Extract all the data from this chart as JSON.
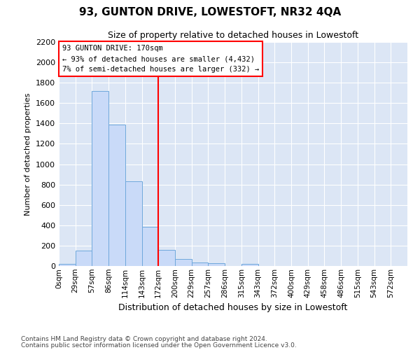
{
  "title": "93, GUNTON DRIVE, LOWESTOFT, NR32 4QA",
  "subtitle": "Size of property relative to detached houses in Lowestoft",
  "xlabel": "Distribution of detached houses by size in Lowestoft",
  "ylabel": "Number of detached properties",
  "bar_color": "#c9daf8",
  "bar_edge_color": "#6fa8dc",
  "background_color": "#dce6f5",
  "grid_color": "#ffffff",
  "bin_labels": [
    "0sqm",
    "29sqm",
    "57sqm",
    "86sqm",
    "114sqm",
    "143sqm",
    "172sqm",
    "200sqm",
    "229sqm",
    "257sqm",
    "286sqm",
    "315sqm",
    "343sqm",
    "372sqm",
    "400sqm",
    "429sqm",
    "458sqm",
    "486sqm",
    "515sqm",
    "543sqm",
    "572sqm"
  ],
  "bar_values": [
    20,
    150,
    1720,
    1390,
    830,
    385,
    160,
    70,
    32,
    28,
    0,
    20,
    0,
    0,
    0,
    0,
    0,
    0,
    0,
    0,
    0
  ],
  "red_line_bin_index": 6,
  "annotation_text": "93 GUNTON DRIVE: 170sqm\n← 93% of detached houses are smaller (4,432)\n7% of semi-detached houses are larger (332) →",
  "ylim_max": 2200,
  "yticks": [
    0,
    200,
    400,
    600,
    800,
    1000,
    1200,
    1400,
    1600,
    1800,
    2000,
    2200
  ],
  "footnote1": "Contains HM Land Registry data © Crown copyright and database right 2024.",
  "footnote2": "Contains public sector information licensed under the Open Government Licence v3.0."
}
